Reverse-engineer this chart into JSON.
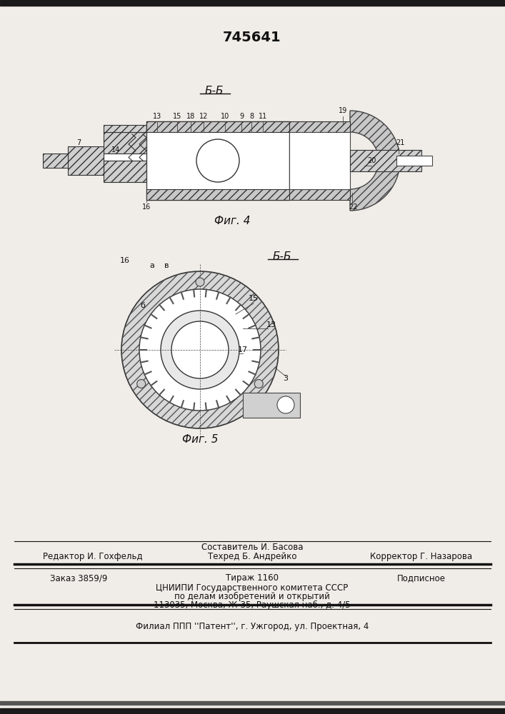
{
  "patent_number": "745641",
  "bg_color": "#f0ede8",
  "fig4_label": "Фиг. 4",
  "fig5_label": "Фиг. 5",
  "section_bb": "Б-Б",
  "section_vv": "Б-Б",
  "top_header_lines": [
    "  ",
    "  ",
    "  "
  ],
  "editor_line": "Редактор И. Гохфельд",
  "composer_line1": "Составитель И. Басова",
  "composer_line2": "Техред Б. Андрейко",
  "corrector_line": "Корректор Г. Назарова",
  "order_line": "Заказ 3859/9",
  "tirazh_line": "Тираж 1160",
  "podpisnoe_line": "Подписное",
  "tsniip_line1": "ЦНИИПИ Государственного комитета СССР",
  "tsniip_line2": "по делам изобретений и открытий",
  "tsniip_line3": "113035, Москва, Ж-35, Раушская наб., д. 4/5",
  "filial_line": "Филиал ППП ''Патент'', г. Ужгород, ул. Проектная, 4"
}
